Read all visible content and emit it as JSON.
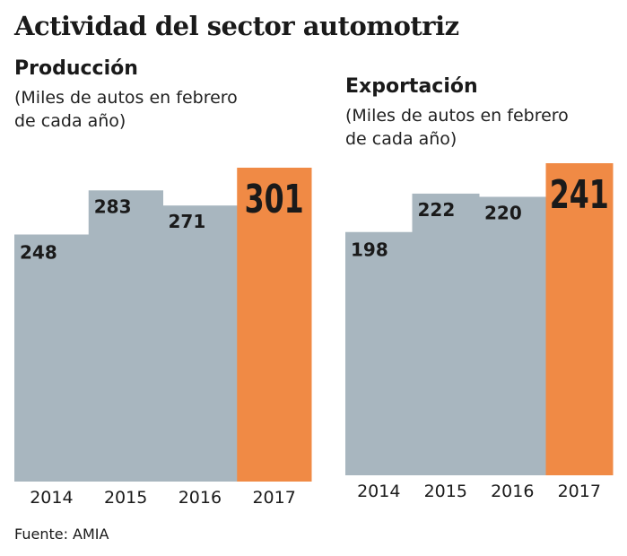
{
  "title": "Actividad del sector automotriz",
  "source": "Fuente: AMIA",
  "colors": {
    "bar": "#a8b6bf",
    "highlight": "#f08a45",
    "text": "#1a1a1a"
  },
  "chart_data": [
    {
      "type": "bar",
      "title": "Producción",
      "subtitle_lines": [
        "(Miles de autos en febrero",
        "de cada año)"
      ],
      "categories": [
        "2014",
        "2015",
        "2016",
        "2017"
      ],
      "values": [
        248,
        283,
        271,
        301
      ],
      "data_labels": [
        "248",
        "283",
        "271",
        "301"
      ],
      "highlight_index": 3,
      "ylim": [
        52,
        301
      ],
      "grid": false
    },
    {
      "type": "bar",
      "title": "Exportación",
      "subtitle_lines": [
        "(Miles de autos en febrero",
        "de cada año)"
      ],
      "categories": [
        "2014",
        "2015",
        "2016",
        "2017"
      ],
      "values": [
        198,
        222,
        220,
        241
      ],
      "data_labels": [
        "198",
        "222",
        "220",
        "241"
      ],
      "highlight_index": 3,
      "ylim": [
        46,
        241
      ],
      "grid": false
    }
  ]
}
